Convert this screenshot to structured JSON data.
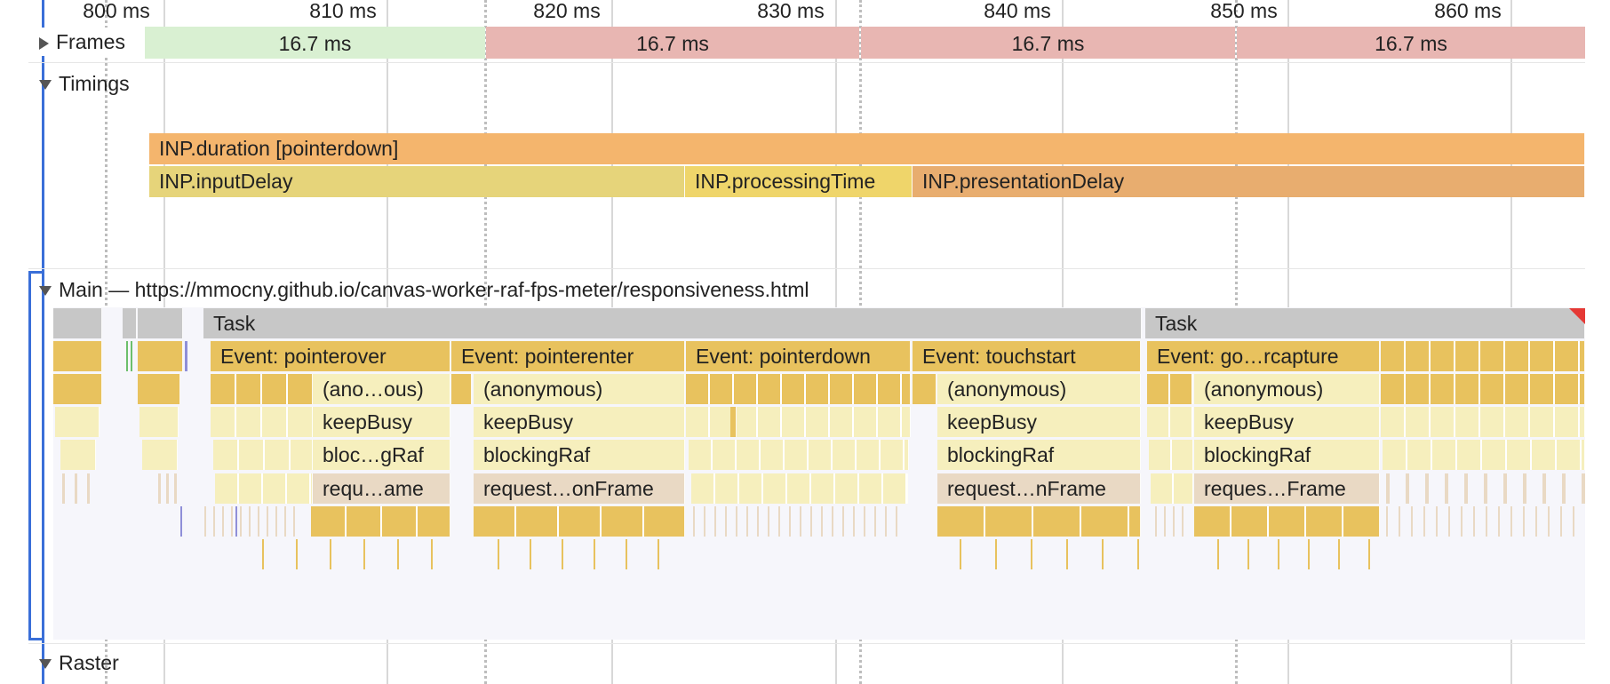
{
  "ruler": {
    "ticks": [
      "800 ms",
      "810 ms",
      "820 ms",
      "830 ms",
      "840 ms",
      "850 ms",
      "860 ms"
    ]
  },
  "frames": {
    "label": "Frames",
    "items": [
      {
        "label": "16.7 ms",
        "status": "ok"
      },
      {
        "label": "16.7 ms",
        "status": "dropped"
      },
      {
        "label": "16.7 ms",
        "status": "dropped"
      },
      {
        "label": "16.7 ms",
        "status": "dropped"
      }
    ]
  },
  "timings": {
    "label": "Timings",
    "duration": "INP.duration [pointerdown]",
    "input_delay": "INP.inputDelay",
    "processing_time": "INP.processingTime",
    "presentation_delay": "INP.presentationDelay"
  },
  "main": {
    "label": "Main — https://mmocny.github.io/canvas-worker-raf-fps-meter/responsiveness.html",
    "tasks": [
      "Task",
      "Task"
    ],
    "events": [
      "Event: pointerover",
      "Event: pointerenter",
      "Event: pointerdown",
      "Event: touchstart",
      "Event: go…rcapture"
    ],
    "anonymous": [
      "(ano…ous)",
      "(anonymous)",
      "(anonymous)",
      "(anonymous)"
    ],
    "keep_busy": [
      "keepBusy",
      "keepBusy",
      "keepBusy",
      "keepBusy"
    ],
    "blocking_raf": [
      "bloc…gRaf",
      "blockingRaf",
      "blockingRaf",
      "blockingRaf"
    ],
    "request_frame": [
      "requ…ame",
      "request…onFrame",
      "request…nFrame",
      "reques…Frame"
    ]
  },
  "raster": {
    "label": "Raster"
  },
  "colors": {
    "frame_ok": "#d9f0d2",
    "frame_dropped": "#e8b6b2",
    "task": "#c7c7c7",
    "event": "#e8c25e",
    "script_light": "#f6efbd",
    "raf": "#e9d9c4",
    "inp_duration": "#f4b56d",
    "inp_input_delay": "#e6d47a",
    "inp_presentation": "#e8ad6f",
    "selection": "#3a6fd8",
    "long_task_marker": "#e53935"
  }
}
